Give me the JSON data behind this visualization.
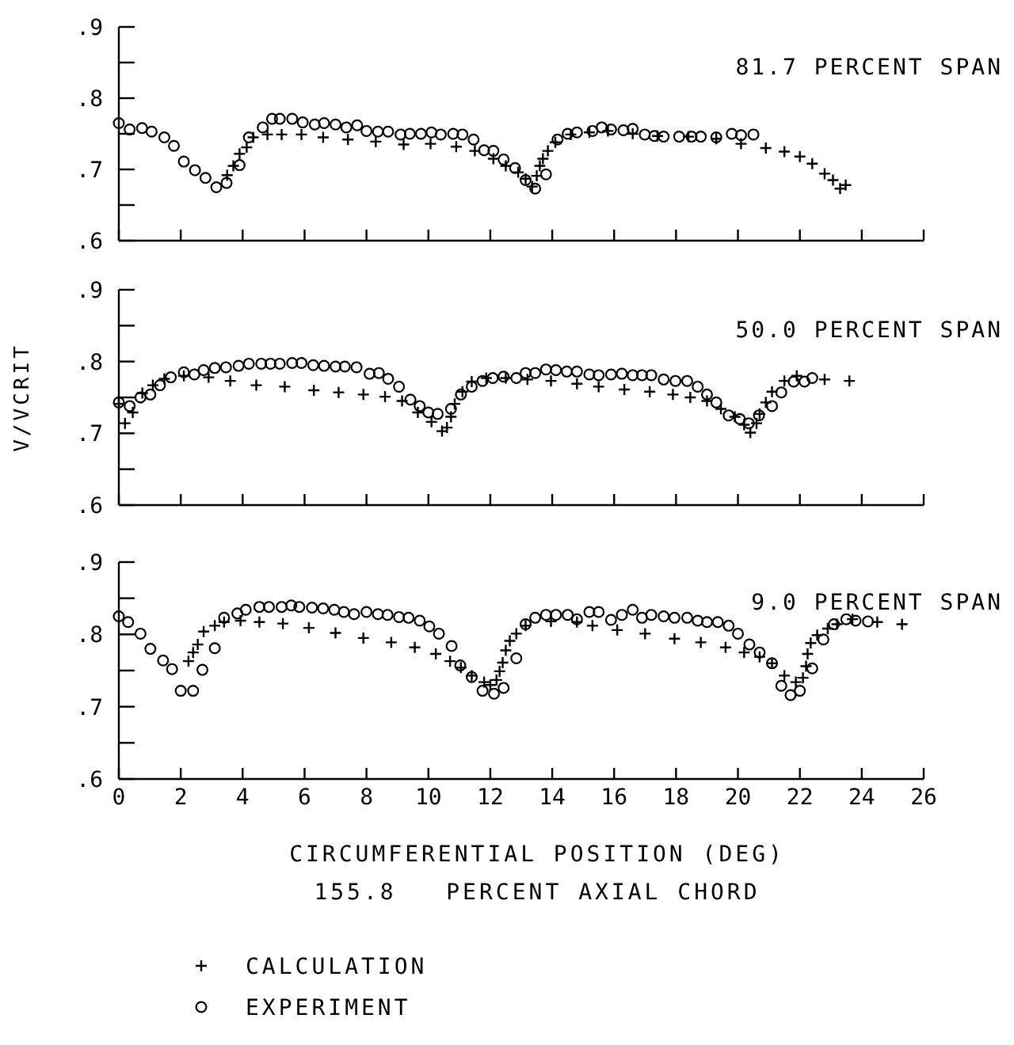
{
  "chart_data": [
    {
      "type": "scatter",
      "annotations": [
        "81.7 PERCENT SPAN"
      ],
      "xlim": [
        0,
        26
      ],
      "ylim": [
        0.6,
        0.9
      ],
      "tick_labels": "y",
      "xticks": [
        {
          "value": 0,
          "label": null
        },
        {
          "value": 2,
          "label": null
        },
        {
          "value": 4,
          "label": null
        },
        {
          "value": 6,
          "label": null
        },
        {
          "value": 8,
          "label": null
        },
        {
          "value": 10,
          "label": null
        },
        {
          "value": 12,
          "label": null
        },
        {
          "value": 14,
          "label": null
        },
        {
          "value": 16,
          "label": null
        },
        {
          "value": 18,
          "label": null
        },
        {
          "value": 20,
          "label": null
        },
        {
          "value": 22,
          "label": null
        },
        {
          "value": 24,
          "label": null
        },
        {
          "value": 26,
          "label": null
        }
      ],
      "yticks": [
        {
          "value": 0.6,
          "label": ".6"
        },
        {
          "value": 0.65,
          "label": null
        },
        {
          "value": 0.7,
          "label": ".7"
        },
        {
          "value": 0.75,
          "label": null
        },
        {
          "value": 0.8,
          "label": ".8"
        },
        {
          "value": 0.85,
          "label": null
        },
        {
          "value": 0.9,
          "label": ".9"
        }
      ],
      "series": [
        {
          "color": "#000000",
          "marker": "cross",
          "x": [
            3.5,
            3.7,
            3.9,
            4.13,
            4.34,
            4.8,
            5.26,
            5.9,
            6.6,
            7.4,
            8.3,
            9.2,
            10.07,
            10.9,
            11.5,
            12.1,
            12.5,
            12.9,
            13.14,
            13.35,
            13.5,
            13.6,
            13.7,
            13.86,
            14.1,
            14.6,
            15.2,
            15.8,
            16.6,
            17.4,
            18.4,
            19.3,
            20.1,
            20.9,
            21.5,
            22.0,
            22.4,
            22.8,
            23.07,
            23.3,
            23.48
          ],
          "values": [
            0.692,
            0.705,
            0.722,
            0.731,
            0.745,
            0.749,
            0.749,
            0.749,
            0.745,
            0.742,
            0.739,
            0.735,
            0.736,
            0.732,
            0.726,
            0.715,
            0.705,
            0.696,
            0.687,
            0.676,
            0.691,
            0.705,
            0.715,
            0.726,
            0.738,
            0.749,
            0.752,
            0.754,
            0.75,
            0.747,
            0.746,
            0.743,
            0.736,
            0.73,
            0.725,
            0.718,
            0.708,
            0.694,
            0.685,
            0.673,
            0.678
          ]
        },
        {
          "color": "#000000",
          "marker": "circle",
          "x": [
            0,
            0.35,
            0.75,
            1.06,
            1.47,
            1.78,
            2.1,
            2.46,
            2.8,
            3.15,
            3.48,
            3.9,
            4.2,
            4.65,
            4.95,
            5.2,
            5.6,
            5.94,
            6.33,
            6.63,
            7.0,
            7.35,
            7.7,
            8.0,
            8.37,
            8.7,
            9.1,
            9.4,
            9.76,
            10.1,
            10.4,
            10.8,
            11.1,
            11.46,
            11.8,
            12.1,
            12.43,
            12.8,
            13.14,
            13.45,
            13.8,
            14.17,
            14.5,
            14.8,
            15.3,
            15.6,
            15.9,
            16.3,
            16.6,
            16.99,
            17.3,
            17.6,
            18.1,
            18.5,
            18.8,
            19.3,
            19.8,
            20.1,
            20.5
          ],
          "values": [
            0.765,
            0.756,
            0.758,
            0.753,
            0.745,
            0.733,
            0.711,
            0.699,
            0.688,
            0.675,
            0.681,
            0.706,
            0.745,
            0.759,
            0.771,
            0.771,
            0.771,
            0.766,
            0.763,
            0.765,
            0.763,
            0.759,
            0.762,
            0.754,
            0.753,
            0.753,
            0.749,
            0.75,
            0.75,
            0.752,
            0.749,
            0.75,
            0.749,
            0.742,
            0.727,
            0.726,
            0.714,
            0.702,
            0.685,
            0.673,
            0.693,
            0.742,
            0.75,
            0.752,
            0.754,
            0.759,
            0.756,
            0.755,
            0.757,
            0.749,
            0.747,
            0.746,
            0.746,
            0.746,
            0.746,
            0.745,
            0.75,
            0.748,
            0.749
          ]
        }
      ]
    },
    {
      "type": "scatter",
      "ylabel": "V/VCRIT",
      "annotations": [
        "50.0 PERCENT SPAN"
      ],
      "xlim": [
        0,
        26
      ],
      "ylim": [
        0.6,
        0.9
      ],
      "tick_labels": "y",
      "xticks": [
        {
          "value": 0,
          "label": null
        },
        {
          "value": 2,
          "label": null
        },
        {
          "value": 4,
          "label": null
        },
        {
          "value": 6,
          "label": null
        },
        {
          "value": 8,
          "label": null
        },
        {
          "value": 10,
          "label": null
        },
        {
          "value": 12,
          "label": null
        },
        {
          "value": 14,
          "label": null
        },
        {
          "value": 16,
          "label": null
        },
        {
          "value": 18,
          "label": null
        },
        {
          "value": 20,
          "label": null
        },
        {
          "value": 22,
          "label": null
        },
        {
          "value": 24,
          "label": null
        },
        {
          "value": 26,
          "label": null
        }
      ],
      "yticks": [
        {
          "value": 0.6,
          "label": ".6"
        },
        {
          "value": 0.65,
          "label": null
        },
        {
          "value": 0.7,
          "label": ".7"
        },
        {
          "value": 0.75,
          "label": null
        },
        {
          "value": 0.8,
          "label": ".8"
        },
        {
          "value": 0.85,
          "label": null
        },
        {
          "value": 0.9,
          "label": ".9"
        }
      ],
      "series": [
        {
          "color": "#000000",
          "marker": "cross",
          "x": [
            0,
            0.2,
            0.45,
            0.76,
            1.1,
            1.47,
            2.1,
            2.9,
            3.6,
            4.44,
            5.36,
            6.3,
            7.1,
            7.9,
            8.6,
            9.15,
            9.66,
            10.1,
            10.44,
            10.6,
            10.73,
            10.85,
            11.1,
            11.4,
            11.87,
            12.5,
            13.2,
            13.96,
            14.8,
            15.5,
            16.33,
            17.15,
            17.9,
            18.46,
            19.0,
            19.45,
            19.9,
            20.2,
            20.4,
            20.6,
            20.7,
            20.9,
            21.1,
            21.5,
            21.9,
            22.8,
            23.6
          ],
          "values": [
            0.741,
            0.714,
            0.729,
            0.756,
            0.767,
            0.776,
            0.78,
            0.778,
            0.773,
            0.767,
            0.765,
            0.76,
            0.757,
            0.754,
            0.751,
            0.745,
            0.729,
            0.716,
            0.703,
            0.708,
            0.723,
            0.741,
            0.758,
            0.772,
            0.777,
            0.777,
            0.775,
            0.773,
            0.769,
            0.765,
            0.761,
            0.758,
            0.754,
            0.75,
            0.745,
            0.734,
            0.723,
            0.712,
            0.701,
            0.714,
            0.727,
            0.743,
            0.758,
            0.773,
            0.78,
            0.775,
            0.773
          ]
        },
        {
          "color": "#000000",
          "marker": "circle",
          "x": [
            0,
            0.35,
            0.7,
            1.02,
            1.33,
            1.68,
            2.1,
            2.44,
            2.74,
            3.1,
            3.46,
            3.87,
            4.2,
            4.6,
            4.9,
            5.2,
            5.6,
            5.9,
            6.28,
            6.63,
            7.0,
            7.3,
            7.68,
            8.1,
            8.4,
            8.7,
            9.05,
            9.42,
            9.72,
            10.0,
            10.3,
            10.73,
            11.05,
            11.4,
            11.75,
            12.08,
            12.43,
            12.84,
            13.14,
            13.45,
            13.8,
            14.12,
            14.47,
            14.8,
            15.2,
            15.5,
            15.9,
            16.25,
            16.6,
            16.9,
            17.2,
            17.6,
            17.98,
            18.36,
            18.7,
            19.0,
            19.3,
            19.7,
            20.06,
            20.35,
            20.68,
            21.1,
            21.4,
            21.8,
            22.15,
            22.4
          ],
          "values": [
            0.743,
            0.738,
            0.75,
            0.754,
            0.767,
            0.778,
            0.785,
            0.782,
            0.788,
            0.791,
            0.792,
            0.794,
            0.797,
            0.797,
            0.797,
            0.797,
            0.798,
            0.798,
            0.795,
            0.794,
            0.793,
            0.793,
            0.792,
            0.783,
            0.784,
            0.776,
            0.765,
            0.747,
            0.738,
            0.729,
            0.727,
            0.734,
            0.754,
            0.765,
            0.773,
            0.777,
            0.779,
            0.777,
            0.784,
            0.784,
            0.789,
            0.788,
            0.786,
            0.786,
            0.782,
            0.781,
            0.782,
            0.783,
            0.781,
            0.781,
            0.781,
            0.775,
            0.773,
            0.773,
            0.765,
            0.754,
            0.743,
            0.725,
            0.72,
            0.714,
            0.725,
            0.738,
            0.757,
            0.772,
            0.772,
            0.777
          ]
        }
      ]
    },
    {
      "type": "scatter",
      "xlabel": "CIRCUMFERENTIAL POSITION (DEG)",
      "annotations": [
        "9.0 PERCENT SPAN",
        "155.8   PERCENT AXIAL CHORD"
      ],
      "xlim": [
        0,
        26
      ],
      "ylim": [
        0.6,
        0.9
      ],
      "legend": "bottom",
      "xticks": [
        0,
        2,
        4,
        6,
        8,
        10,
        12,
        14,
        16,
        18,
        20,
        22,
        24,
        26
      ],
      "yticks": [
        {
          "value": 0.6,
          "label": ".6"
        },
        {
          "value": 0.65,
          "label": null
        },
        {
          "value": 0.7,
          "label": ".7"
        },
        {
          "value": 0.75,
          "label": null
        },
        {
          "value": 0.8,
          "label": ".8"
        },
        {
          "value": 0.85,
          "label": null
        },
        {
          "value": 0.9,
          "label": ".9"
        }
      ],
      "series": [
        {
          "name": "CALCULATION",
          "color": "#000000",
          "marker": "cross",
          "x": [
            2.25,
            2.4,
            2.55,
            2.74,
            3.1,
            3.4,
            3.93,
            4.54,
            5.3,
            6.14,
            7.0,
            7.9,
            8.8,
            9.56,
            10.24,
            10.7,
            11.05,
            11.4,
            11.8,
            12.0,
            12.2,
            12.3,
            12.4,
            12.5,
            12.63,
            12.84,
            13.14,
            13.96,
            14.8,
            15.3,
            16.1,
            17.0,
            17.95,
            18.8,
            19.6,
            20.2,
            20.7,
            21.1,
            21.5,
            21.87,
            22.1,
            22.2,
            22.25,
            22.35,
            22.56,
            22.9,
            23.2,
            23.7,
            24.5,
            25.3
          ],
          "values": [
            0.763,
            0.775,
            0.786,
            0.804,
            0.812,
            0.817,
            0.819,
            0.817,
            0.815,
            0.809,
            0.802,
            0.795,
            0.789,
            0.782,
            0.773,
            0.763,
            0.754,
            0.743,
            0.734,
            0.73,
            0.737,
            0.749,
            0.761,
            0.778,
            0.791,
            0.801,
            0.812,
            0.818,
            0.817,
            0.812,
            0.806,
            0.801,
            0.794,
            0.789,
            0.782,
            0.775,
            0.769,
            0.76,
            0.743,
            0.734,
            0.74,
            0.756,
            0.773,
            0.788,
            0.799,
            0.808,
            0.814,
            0.821,
            0.817,
            0.814
          ]
        },
        {
          "name": "EXPERIMENT",
          "color": "#000000",
          "marker": "circle",
          "x": [
            0,
            0.3,
            0.7,
            1.02,
            1.43,
            1.72,
            2.0,
            2.4,
            2.7,
            3.1,
            3.4,
            3.83,
            4.1,
            4.54,
            4.85,
            5.26,
            5.57,
            5.83,
            6.24,
            6.6,
            6.96,
            7.27,
            7.6,
            8.0,
            8.37,
            8.68,
            9.05,
            9.36,
            9.72,
            10.03,
            10.34,
            10.75,
            11.03,
            11.4,
            11.75,
            12.12,
            12.43,
            12.84,
            13.14,
            13.45,
            13.8,
            14.12,
            14.5,
            14.8,
            15.2,
            15.5,
            15.9,
            16.25,
            16.6,
            16.9,
            17.2,
            17.6,
            17.95,
            18.36,
            18.7,
            19.0,
            19.35,
            19.7,
            20.0,
            20.37,
            20.7,
            21.1,
            21.4,
            21.7,
            22.0,
            22.4,
            22.76,
            23.1,
            23.5,
            23.8,
            24.2
          ],
          "values": [
            0.825,
            0.817,
            0.801,
            0.78,
            0.764,
            0.752,
            0.722,
            0.722,
            0.751,
            0.781,
            0.823,
            0.829,
            0.834,
            0.838,
            0.838,
            0.838,
            0.84,
            0.838,
            0.837,
            0.836,
            0.834,
            0.831,
            0.828,
            0.831,
            0.828,
            0.827,
            0.824,
            0.823,
            0.819,
            0.811,
            0.801,
            0.784,
            0.757,
            0.741,
            0.722,
            0.718,
            0.726,
            0.767,
            0.814,
            0.823,
            0.827,
            0.827,
            0.827,
            0.821,
            0.831,
            0.831,
            0.82,
            0.827,
            0.834,
            0.823,
            0.827,
            0.825,
            0.823,
            0.823,
            0.819,
            0.817,
            0.817,
            0.812,
            0.801,
            0.786,
            0.775,
            0.76,
            0.729,
            0.716,
            0.722,
            0.753,
            0.793,
            0.814,
            0.821,
            0.819,
            0.818
          ]
        }
      ]
    }
  ]
}
